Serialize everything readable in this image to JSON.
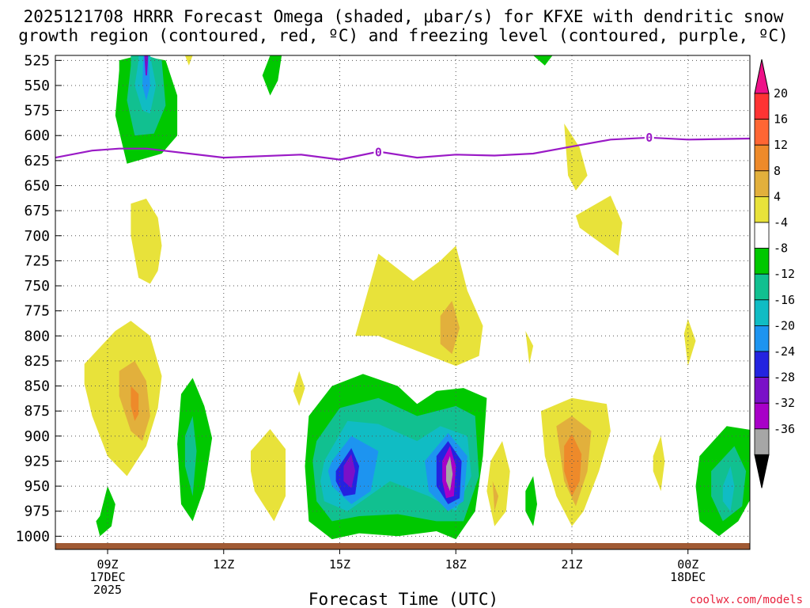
{
  "title_line1": "2025121708 HRRR Forecast Omega (shaded, μbar/s) for KFXE with dendritic snow",
  "title_line2": "growth region (contoured, red, ºC) and freezing level (contoured, purple, ºC)",
  "xlabel": "Forecast Time (UTC)",
  "credit": "coolwx.com/models",
  "chart_data": {
    "type": "contour",
    "x_unit": "hours_since_2025121708",
    "xlim": [
      -0.35,
      17.6
    ],
    "ylim": [
      1010,
      520
    ],
    "y_ticks": [
      525,
      550,
      575,
      600,
      625,
      650,
      675,
      700,
      725,
      750,
      775,
      800,
      825,
      850,
      875,
      900,
      925,
      950,
      975,
      1000
    ],
    "x_ticks": [
      {
        "x": 1,
        "lines": [
          "09Z",
          "17DEC",
          "2025"
        ]
      },
      {
        "x": 4,
        "lines": [
          "12Z"
        ]
      },
      {
        "x": 7,
        "lines": [
          "15Z"
        ]
      },
      {
        "x": 10,
        "lines": [
          "18Z"
        ]
      },
      {
        "x": 13,
        "lines": [
          "21Z"
        ]
      },
      {
        "x": 16,
        "lines": [
          "00Z",
          "18DEC"
        ]
      }
    ],
    "colorbar": {
      "labels": [
        "20",
        "16",
        "12",
        "8",
        "4",
        "-4",
        "-8",
        "-12",
        "-16",
        "-20",
        "-24",
        "-28",
        "-32",
        "-36"
      ],
      "bins": [
        "#ff3333",
        "#ff6633",
        "#ee8a2a",
        "#e2b03c",
        "#e8e23a",
        "#ffffff",
        "#00c800",
        "#11c090",
        "#10bcc4",
        "#1d94f0",
        "#2323e0",
        "#7a10c8",
        "#a800c8",
        "#a6a6a6"
      ],
      "top_triangle": "#ee1188",
      "bottom_triangle": "#000000"
    },
    "freezing_level": {
      "label": "0",
      "color": "#9a1ac6",
      "x": [
        -0.35,
        0.6,
        1.3,
        2,
        4,
        6,
        7,
        8,
        9,
        10,
        11,
        12,
        13,
        14,
        15,
        16,
        17.6
      ],
      "p": [
        622,
        615,
        613,
        613,
        622,
        619,
        624,
        616,
        622,
        619,
        620,
        618,
        611,
        604,
        602,
        604,
        603
      ],
      "label_at": [
        [
          8,
          617
        ],
        [
          15,
          602
        ]
      ]
    },
    "shaded_regions": [
      {
        "omega": "-4",
        "x": [
          1.3,
          1.8,
          2.5,
          2.8,
          2.8,
          2.4,
          1.5,
          1.2,
          1.3
        ],
        "p": [
          525,
          520,
          525,
          560,
          600,
          618,
          628,
          580,
          535
        ]
      },
      {
        "omega": "-8",
        "x": [
          1.6,
          2.0,
          2.4,
          2.5,
          2.2,
          1.7,
          1.5,
          1.6
        ],
        "p": [
          520,
          520,
          525,
          570,
          598,
          600,
          565,
          530
        ]
      },
      {
        "omega": "-12",
        "x": [
          1.8,
          2.1,
          2.25,
          2.1,
          1.9,
          1.7,
          1.8
        ],
        "p": [
          520,
          520,
          550,
          578,
          575,
          550,
          525
        ]
      },
      {
        "omega": "-16",
        "x": [
          1.92,
          2.05,
          2.1,
          2.0,
          1.9,
          1.92
        ],
        "p": [
          520,
          520,
          550,
          565,
          550,
          525
        ]
      },
      {
        "omega": "-24",
        "x": [
          1.95,
          2.05,
          2.02,
          1.98,
          1.95
        ],
        "p": [
          520,
          520,
          540,
          540,
          520
        ]
      },
      {
        "omega": "4",
        "x": [
          3.0,
          3.2,
          3.1,
          3.0
        ],
        "p": [
          520,
          520,
          530,
          520
        ]
      },
      {
        "omega": "-4",
        "x": [
          5.2,
          5.5,
          5.4,
          5.2,
          5.0,
          5.2
        ],
        "p": [
          520,
          520,
          545,
          560,
          540,
          520
        ]
      },
      {
        "omega": "-4",
        "x": [
          12.0,
          12.5,
          12.3,
          12.0
        ],
        "p": [
          520,
          520,
          530,
          520
        ]
      },
      {
        "omega": "4",
        "x": [
          12.8,
          13.2,
          13.4,
          13.1,
          12.9,
          12.8
        ],
        "p": [
          588,
          612,
          640,
          655,
          640,
          588
        ]
      },
      {
        "omega": "4",
        "x": [
          1.6,
          2.0,
          2.3,
          2.4,
          2.3,
          2.1,
          1.8,
          1.6,
          1.6
        ],
        "p": [
          668,
          663,
          682,
          710,
          735,
          748,
          742,
          700,
          668
        ]
      },
      {
        "omega": "4",
        "x": [
          13.1,
          14.0,
          14.3,
          14.2,
          13.2,
          13.1
        ],
        "p": [
          680,
          660,
          687,
          720,
          692,
          680
        ]
      },
      {
        "omega": "4",
        "x": [
          7.4,
          8.0,
          8.9,
          9.6,
          10.0,
          10.3,
          10.7,
          10.6,
          10.0,
          9.0,
          8.0,
          7.4,
          7.4
        ],
        "p": [
          800,
          718,
          745,
          725,
          710,
          755,
          790,
          820,
          830,
          815,
          800,
          800,
          800
        ]
      },
      {
        "omega": "8",
        "x": [
          9.6,
          9.9,
          10.1,
          9.9,
          9.6,
          9.6
        ],
        "p": [
          780,
          765,
          792,
          818,
          808,
          780
        ]
      },
      {
        "omega": "4",
        "x": [
          11.8,
          12.0,
          11.9,
          11.8
        ],
        "p": [
          795,
          810,
          828,
          795
        ]
      },
      {
        "omega": "4",
        "x": [
          15.9,
          16.0,
          16.2,
          16.0,
          15.9
        ],
        "p": [
          798,
          783,
          805,
          830,
          798
        ]
      },
      {
        "omega": "4",
        "x": [
          0.4,
          1.2,
          1.6,
          2.1,
          2.4,
          2.3,
          2.0,
          1.5,
          1.0,
          0.6,
          0.4,
          0.4
        ],
        "p": [
          828,
          795,
          785,
          800,
          840,
          872,
          910,
          940,
          920,
          880,
          848,
          828
        ]
      },
      {
        "omega": "8",
        "x": [
          1.3,
          1.7,
          2.0,
          2.1,
          1.9,
          1.6,
          1.3,
          1.3
        ],
        "p": [
          835,
          825,
          845,
          880,
          905,
          895,
          860,
          835
        ]
      },
      {
        "omega": "12",
        "x": [
          1.6,
          1.8,
          1.8,
          1.7,
          1.6,
          1.6
        ],
        "p": [
          850,
          858,
          878,
          885,
          870,
          850
        ]
      },
      {
        "omega": "4",
        "x": [
          5.8,
          5.95,
          6.1,
          5.95,
          5.8
        ],
        "p": [
          855,
          835,
          852,
          870,
          855
        ]
      },
      {
        "omega": "-4",
        "x": [
          2.9,
          3.2,
          3.5,
          3.7,
          3.5,
          3.2,
          2.9,
          2.8,
          2.9
        ],
        "p": [
          858,
          842,
          870,
          902,
          952,
          985,
          968,
          908,
          858
        ]
      },
      {
        "omega": "-8",
        "x": [
          3.0,
          3.2,
          3.3,
          3.2,
          3.0,
          3.0
        ],
        "p": [
          900,
          880,
          915,
          960,
          930,
          900
        ]
      },
      {
        "omega": "4",
        "x": [
          4.7,
          5.2,
          5.6,
          5.6,
          5.3,
          4.8,
          4.7,
          4.7
        ],
        "p": [
          915,
          893,
          913,
          960,
          985,
          955,
          935,
          915
        ]
      },
      {
        "omega": "-4",
        "x": [
          6.2,
          6.8,
          7.6,
          8.5,
          9.0,
          9.5,
          10.2,
          10.8,
          10.7,
          10.5,
          10.0,
          9.5,
          8.5,
          7.5,
          6.8,
          6.2,
          6.1,
          6.2
        ],
        "p": [
          880,
          850,
          838,
          850,
          868,
          855,
          852,
          862,
          920,
          975,
          1003,
          995,
          1000,
          997,
          1003,
          985,
          930,
          880
        ]
      },
      {
        "omega": "-8",
        "x": [
          6.4,
          7.0,
          8.0,
          9.0,
          10.0,
          10.5,
          10.6,
          10.2,
          9.5,
          8.5,
          7.5,
          6.8,
          6.4,
          6.3,
          6.4
        ],
        "p": [
          905,
          872,
          862,
          880,
          870,
          880,
          940,
          985,
          985,
          978,
          980,
          985,
          965,
          925,
          905
        ]
      },
      {
        "omega": "-12",
        "x": [
          6.6,
          7.2,
          8.0,
          9.0,
          9.6,
          10.3,
          10.4,
          10.0,
          9.3,
          8.3,
          7.2,
          6.6,
          6.5,
          6.6
        ],
        "p": [
          925,
          885,
          888,
          905,
          890,
          900,
          940,
          975,
          960,
          945,
          975,
          965,
          945,
          925
        ]
      },
      {
        "omega": "-16",
        "x": [
          6.8,
          7.3,
          8.0,
          7.8,
          7.3,
          6.8,
          6.7,
          6.8
        ],
        "p": [
          925,
          900,
          915,
          955,
          968,
          950,
          935,
          925
        ]
      },
      {
        "omega": "-16",
        "x": [
          9.2,
          9.8,
          10.3,
          10.2,
          9.8,
          9.3,
          9.2
        ],
        "p": [
          925,
          897,
          920,
          965,
          975,
          955,
          925
        ]
      },
      {
        "omega": "-20",
        "x": [
          6.9,
          7.3,
          7.5,
          7.4,
          7.1,
          6.9,
          6.9
        ],
        "p": [
          935,
          912,
          930,
          958,
          960,
          945,
          935
        ]
      },
      {
        "omega": "-20",
        "x": [
          9.5,
          9.8,
          10.15,
          10.1,
          9.8,
          9.5,
          9.5
        ],
        "p": [
          920,
          905,
          925,
          962,
          968,
          950,
          920
        ]
      },
      {
        "omega": "-24",
        "x": [
          7.1,
          7.3,
          7.4,
          7.3,
          7.1,
          7.1
        ],
        "p": [
          930,
          918,
          935,
          952,
          945,
          930
        ]
      },
      {
        "omega": "-28",
        "x": [
          9.65,
          9.85,
          10.0,
          9.95,
          9.75,
          9.65,
          9.65
        ],
        "p": [
          925,
          910,
          930,
          960,
          962,
          945,
          925
        ]
      },
      {
        "omega": "-32",
        "x": [
          9.75,
          9.85,
          9.92,
          9.85,
          9.75,
          9.75
        ],
        "p": [
          930,
          920,
          938,
          955,
          945,
          930
        ]
      },
      {
        "omega": "4",
        "x": [
          10.9,
          11.2,
          11.4,
          11.3,
          11.0,
          10.8,
          10.9
        ],
        "p": [
          925,
          905,
          935,
          975,
          990,
          955,
          925
        ]
      },
      {
        "omega": "8",
        "x": [
          10.95,
          11.1,
          11.0,
          10.95
        ],
        "p": [
          945,
          960,
          975,
          945
        ]
      },
      {
        "omega": "-4",
        "x": [
          11.8,
          12.0,
          12.1,
          12.0,
          11.8,
          11.8
        ],
        "p": [
          955,
          940,
          968,
          990,
          975,
          955
        ]
      },
      {
        "omega": "4",
        "x": [
          12.2,
          13.0,
          13.9,
          14.0,
          13.7,
          13.3,
          13.0,
          12.6,
          12.3,
          12.2
        ],
        "p": [
          875,
          862,
          868,
          895,
          935,
          975,
          990,
          960,
          920,
          875
        ]
      },
      {
        "omega": "8",
        "x": [
          12.6,
          13.0,
          13.5,
          13.4,
          13.1,
          12.8,
          12.6
        ],
        "p": [
          890,
          880,
          895,
          935,
          970,
          945,
          890
        ]
      },
      {
        "omega": "12",
        "x": [
          12.8,
          13.0,
          13.25,
          13.2,
          13.0,
          12.8,
          12.8
        ],
        "p": [
          910,
          898,
          918,
          945,
          960,
          935,
          910
        ]
      },
      {
        "omega": "4",
        "x": [
          15.1,
          15.3,
          15.4,
          15.3,
          15.1,
          15.1
        ],
        "p": [
          920,
          900,
          925,
          955,
          935,
          920
        ]
      },
      {
        "omega": "-4",
        "x": [
          0.8,
          1.0,
          1.2,
          1.1,
          0.8,
          0.7,
          0.8
        ],
        "p": [
          980,
          950,
          968,
          990,
          1000,
          985,
          980
        ]
      },
      {
        "omega": "-4",
        "x": [
          16.3,
          17.0,
          17.8,
          17.8,
          17.3,
          16.8,
          16.3,
          16.2,
          16.3
        ],
        "p": [
          920,
          890,
          895,
          950,
          985,
          1000,
          985,
          950,
          920
        ]
      },
      {
        "omega": "-8",
        "x": [
          16.6,
          17.2,
          17.5,
          17.4,
          16.9,
          16.6,
          16.6
        ],
        "p": [
          935,
          910,
          935,
          970,
          985,
          960,
          935
        ]
      },
      {
        "omega": "-12",
        "x": [
          16.9,
          17.1,
          17.2,
          17.1,
          16.9,
          16.9
        ],
        "p": [
          950,
          930,
          950,
          975,
          965,
          950
        ]
      }
    ]
  }
}
